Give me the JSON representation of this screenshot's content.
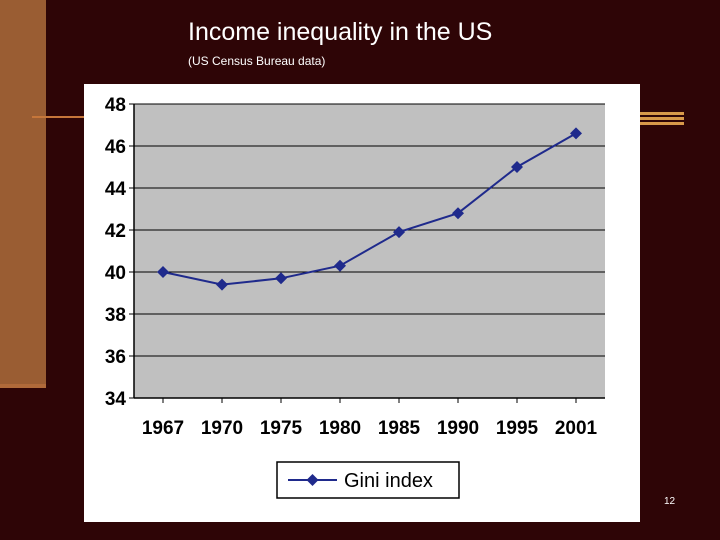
{
  "slide": {
    "title": "Income inequality in the US",
    "subtitle": "(US Census Bureau data)",
    "page_number": "12"
  },
  "colors": {
    "background": "#2e0506",
    "side_panel": "#9a5d33",
    "plot_area": "#c0c0c0",
    "series_line": "#1f2a8c"
  },
  "chart_data": {
    "type": "line",
    "categories": [
      "1967",
      "1970",
      "1975",
      "1980",
      "1985",
      "1990",
      "1995",
      "2001"
    ],
    "series": [
      {
        "name": "Gini index",
        "values": [
          40.0,
          39.4,
          39.7,
          40.3,
          41.9,
          42.8,
          45.0,
          46.6
        ]
      }
    ],
    "ylim": [
      34,
      48
    ],
    "yticks": [
      34,
      36,
      38,
      40,
      42,
      44,
      46,
      48
    ],
    "grid": true,
    "legend": "bottom",
    "marker": "diamond"
  }
}
